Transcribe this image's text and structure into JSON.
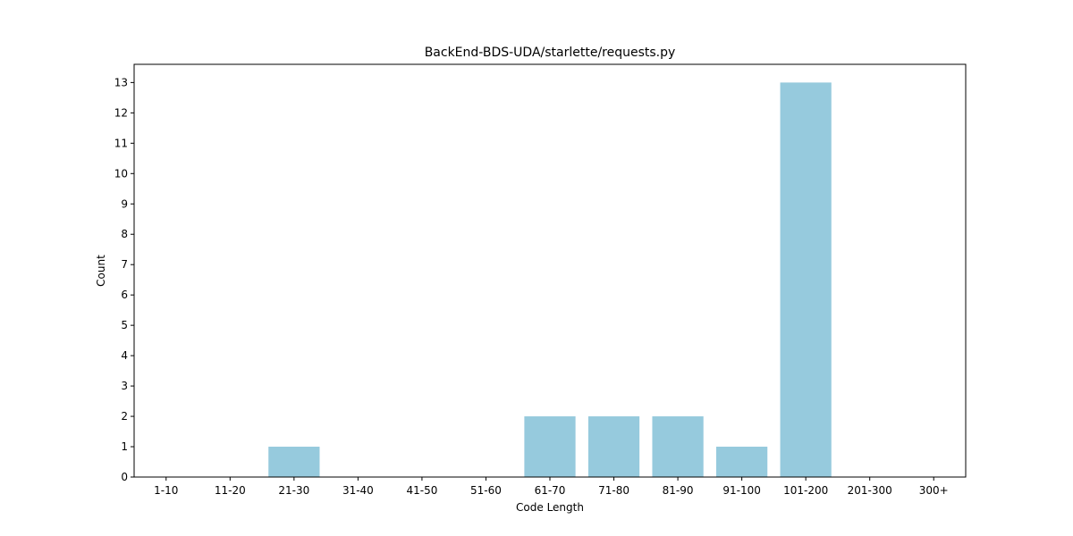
{
  "chart_data": {
    "type": "bar",
    "title": "BackEnd-BDS-UDA/starlette/requests.py",
    "xlabel": "Code Length",
    "ylabel": "Count",
    "categories": [
      "1-10",
      "11-20",
      "21-30",
      "31-40",
      "41-50",
      "51-60",
      "61-70",
      "71-80",
      "81-90",
      "91-100",
      "101-200",
      "201-300",
      "300+"
    ],
    "values": [
      0,
      0,
      1,
      0,
      0,
      0,
      2,
      2,
      2,
      1,
      13,
      0,
      0
    ],
    "ylim": [
      0,
      13.6
    ],
    "yticks": [
      0,
      1,
      2,
      3,
      4,
      5,
      6,
      7,
      8,
      9,
      10,
      11,
      12,
      13
    ],
    "bar_color": "#96cadd",
    "grid": false,
    "legend": "none"
  }
}
